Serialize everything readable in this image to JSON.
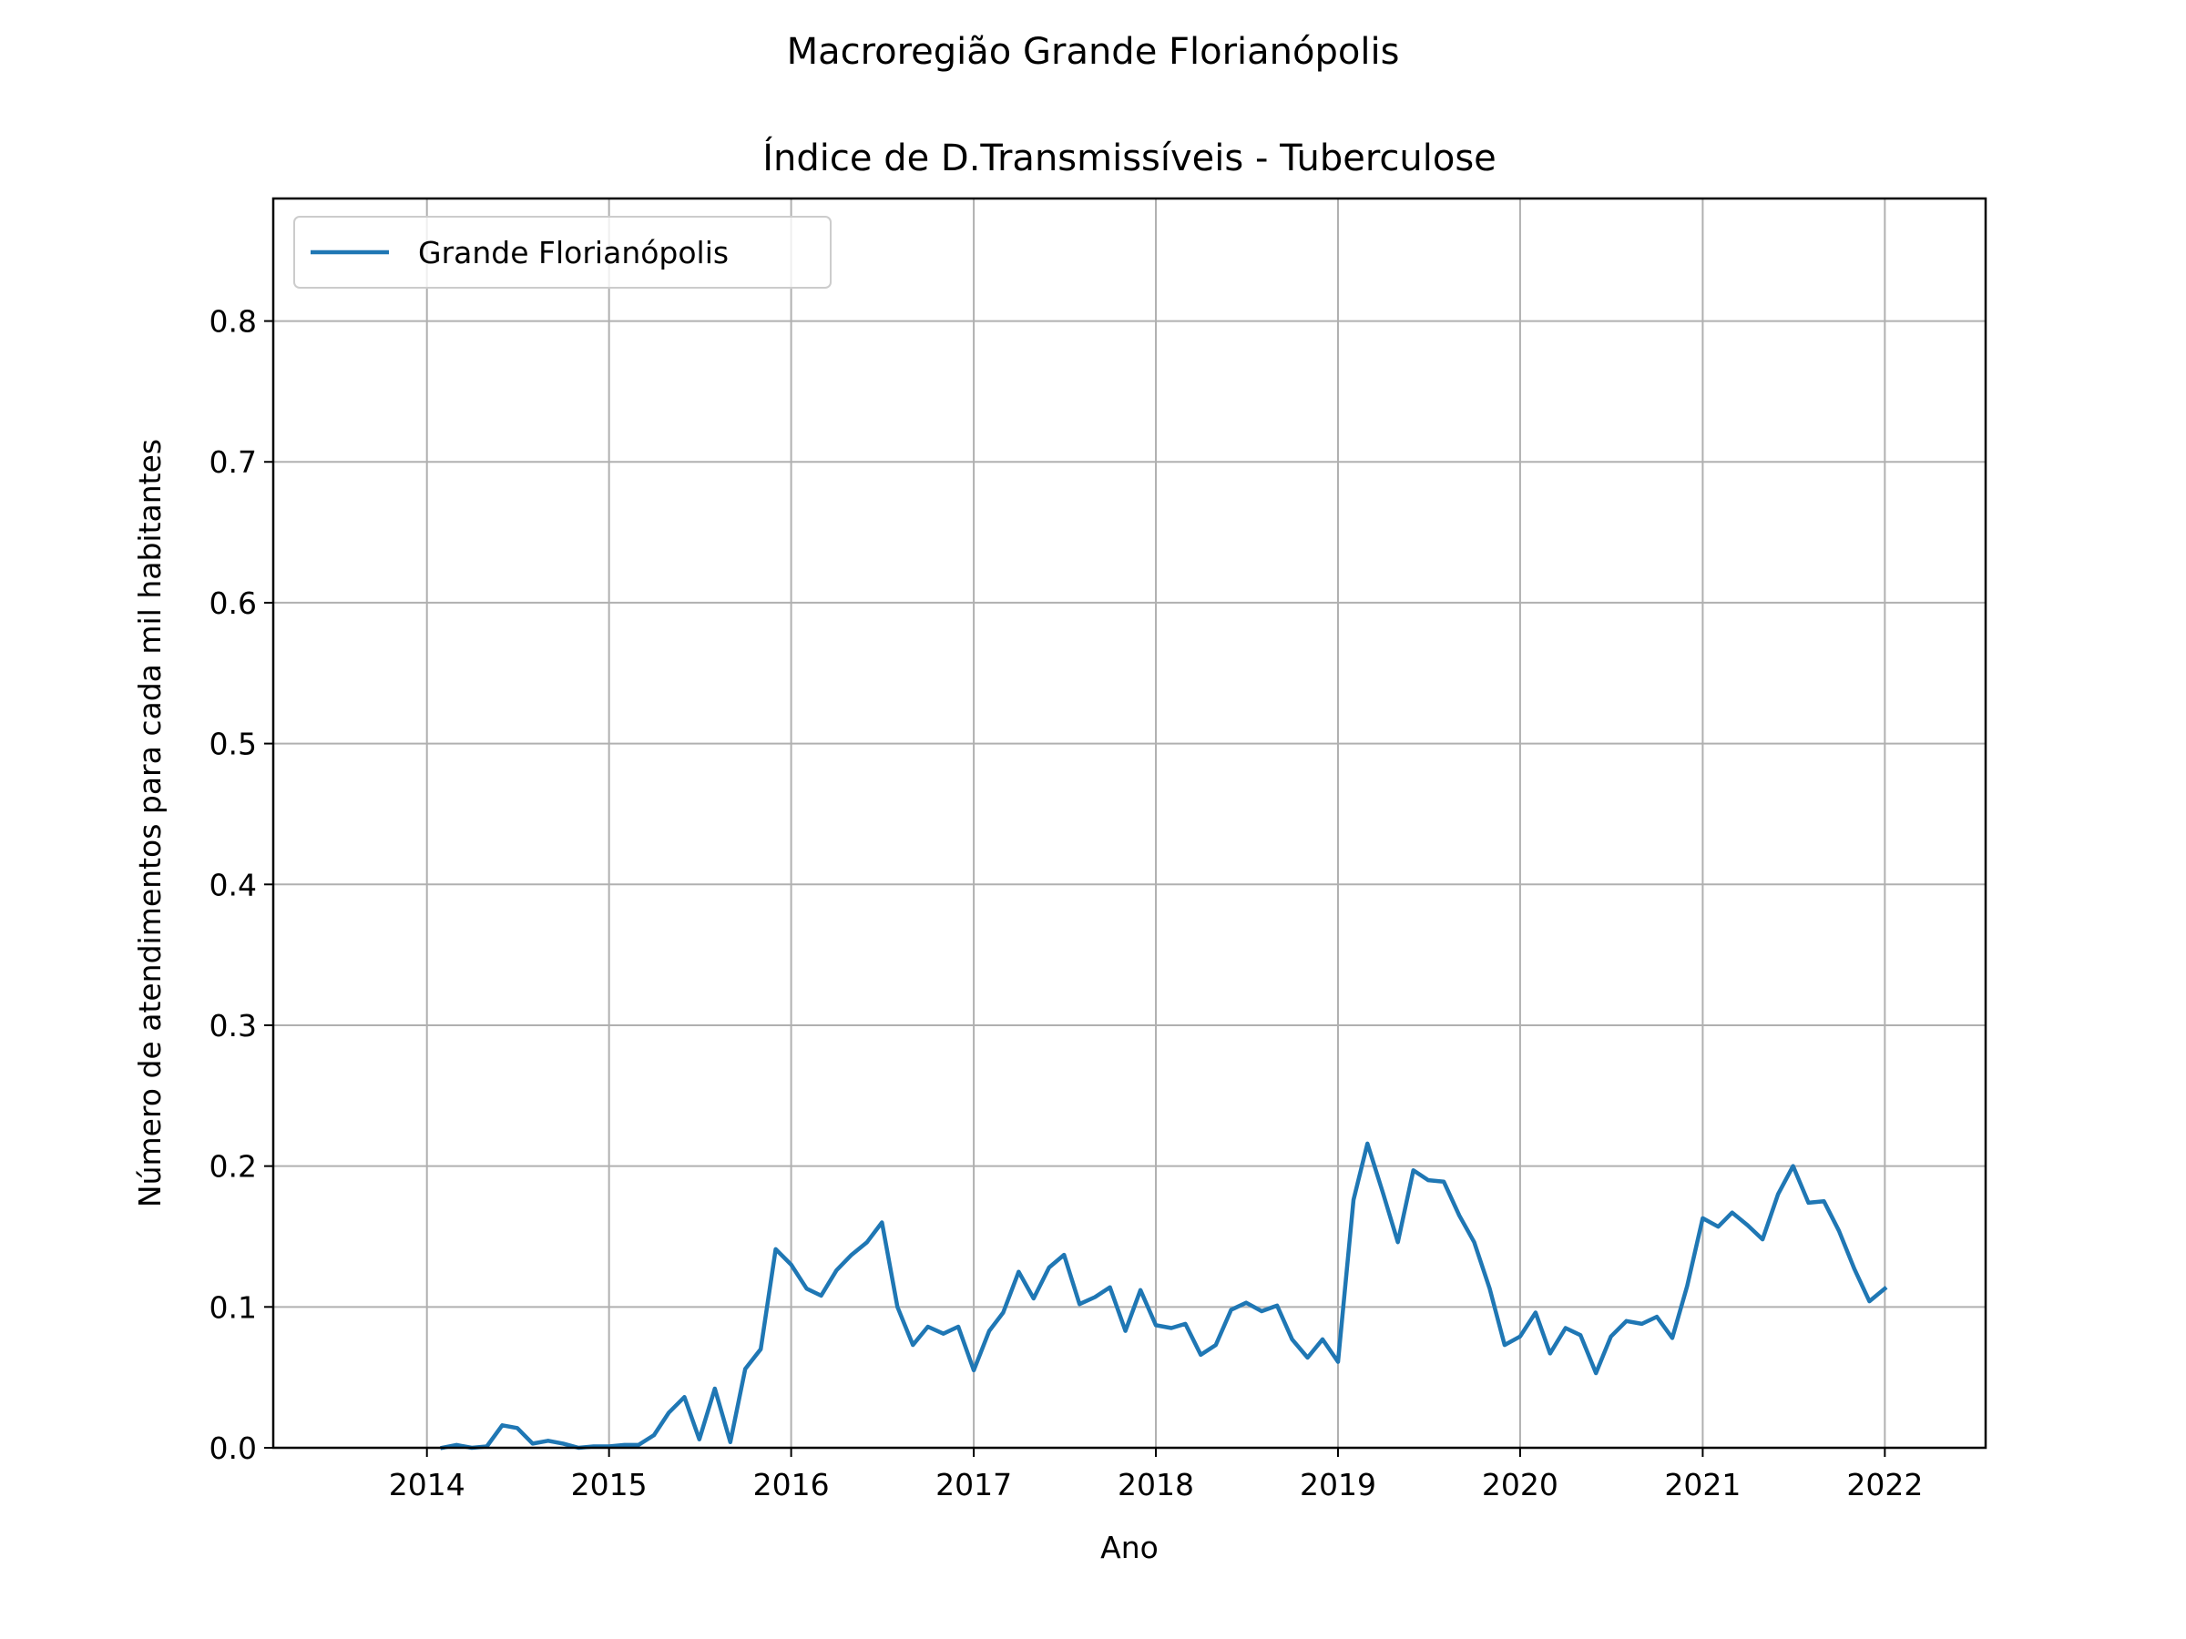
{
  "suptitle": "Macroregião Grande Florianópolis",
  "chart_data": {
    "type": "line",
    "title": "Índice de D.Transmissíveis - Tuberculose",
    "xlabel": "Ano",
    "ylabel": "Número de atendimentos para cada mil habitantes",
    "xlim": [
      "2013-02-27",
      "2022-07-22"
    ],
    "ylim": [
      0,
      0.887
    ],
    "x_ticks": [
      "2014",
      "2015",
      "2016",
      "2017",
      "2018",
      "2019",
      "2020",
      "2021",
      "2022"
    ],
    "y_ticks": [
      "0.0",
      "0.1",
      "0.2",
      "0.3",
      "0.4",
      "0.5",
      "0.6",
      "0.7",
      "0.8"
    ],
    "grid": true,
    "legend": {
      "position": "upper-left"
    },
    "colors": {
      "series": "#1f77b4",
      "grid": "#b0b0b0"
    },
    "series": [
      {
        "name": "Grande Florianópolis",
        "x_start": "2014-02",
        "frequency": "monthly",
        "values": [
          0.0,
          0.002,
          0.0,
          0.001,
          0.016,
          0.014,
          0.003,
          0.005,
          0.003,
          0.0,
          0.001,
          0.001,
          0.002,
          0.002,
          0.009,
          0.025,
          0.036,
          0.006,
          0.042,
          0.004,
          0.056,
          0.07,
          0.141,
          0.13,
          0.113,
          0.108,
          0.126,
          0.137,
          0.146,
          0.16,
          0.1,
          0.073,
          0.086,
          0.081,
          0.086,
          0.055,
          0.083,
          0.096,
          0.125,
          0.106,
          0.128,
          0.137,
          0.102,
          0.107,
          0.114,
          0.083,
          0.112,
          0.087,
          0.085,
          0.088,
          0.066,
          0.073,
          0.098,
          0.103,
          0.097,
          0.101,
          0.077,
          0.064,
          0.077,
          0.061,
          0.176,
          0.216,
          0.181,
          0.146,
          0.197,
          0.19,
          0.189,
          0.165,
          0.146,
          0.113,
          0.073,
          0.079,
          0.096,
          0.067,
          0.085,
          0.08,
          0.053,
          0.079,
          0.09,
          0.088,
          0.093,
          0.078,
          0.115,
          0.163,
          0.157,
          0.167,
          0.158,
          0.148,
          0.18,
          0.2,
          0.174,
          0.175,
          0.154,
          0.127,
          0.104,
          0.113
        ]
      }
    ]
  }
}
